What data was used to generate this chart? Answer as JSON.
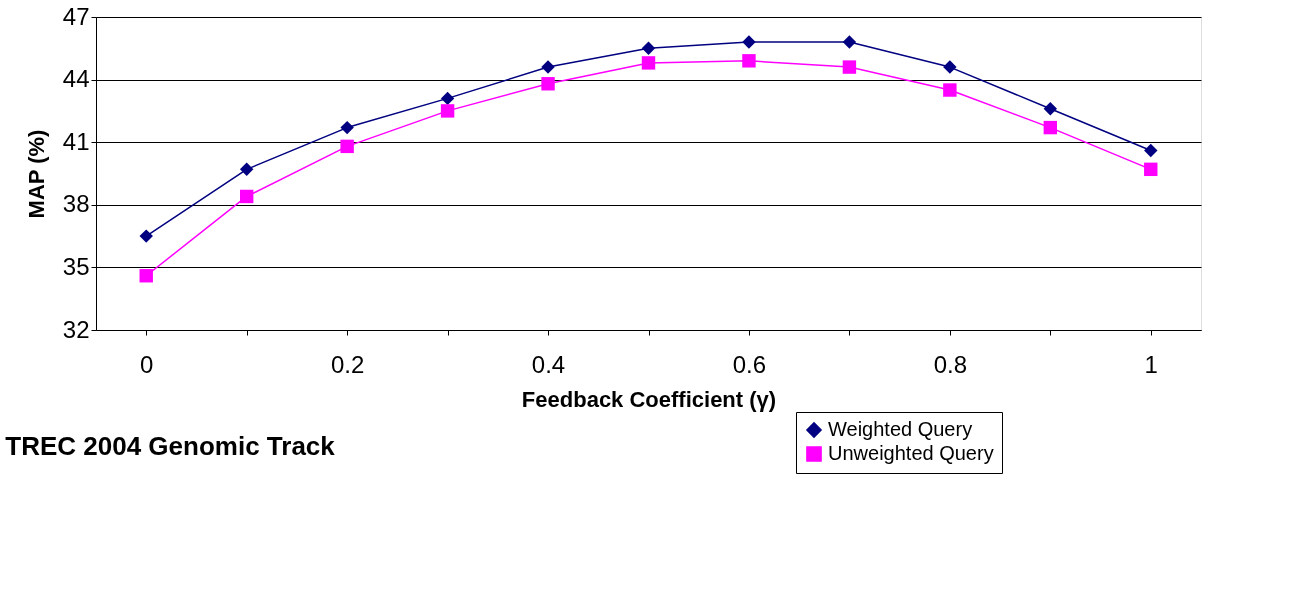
{
  "chart_data": {
    "type": "line",
    "title": "TREC 2004 Genomic Track",
    "xlabel": "Feedback Coefficient (γ)",
    "ylabel": "MAP (%)",
    "categories": [
      "0",
      null,
      "0.2",
      null,
      "0.4",
      null,
      "0.6",
      null,
      "0.8",
      null,
      "1"
    ],
    "series": [
      {
        "name": "Weighted Query",
        "color": "#000080",
        "marker": "diamond",
        "values": [
          36.5,
          39.7,
          41.7,
          43.1,
          44.6,
          45.5,
          45.8,
          45.8,
          44.6,
          42.6,
          40.6
        ]
      },
      {
        "name": "Unweighted Query",
        "color": "#ff00ff",
        "marker": "square",
        "values": [
          34.6,
          38.4,
          40.8,
          42.5,
          43.8,
          44.8,
          44.9,
          44.6,
          43.5,
          41.7,
          39.7
        ]
      }
    ],
    "ylim": [
      32,
      47
    ],
    "yticks": [
      32,
      35,
      38,
      41,
      44,
      47
    ],
    "grid": "y",
    "legend": "bottom right",
    "line_style": "solid"
  }
}
